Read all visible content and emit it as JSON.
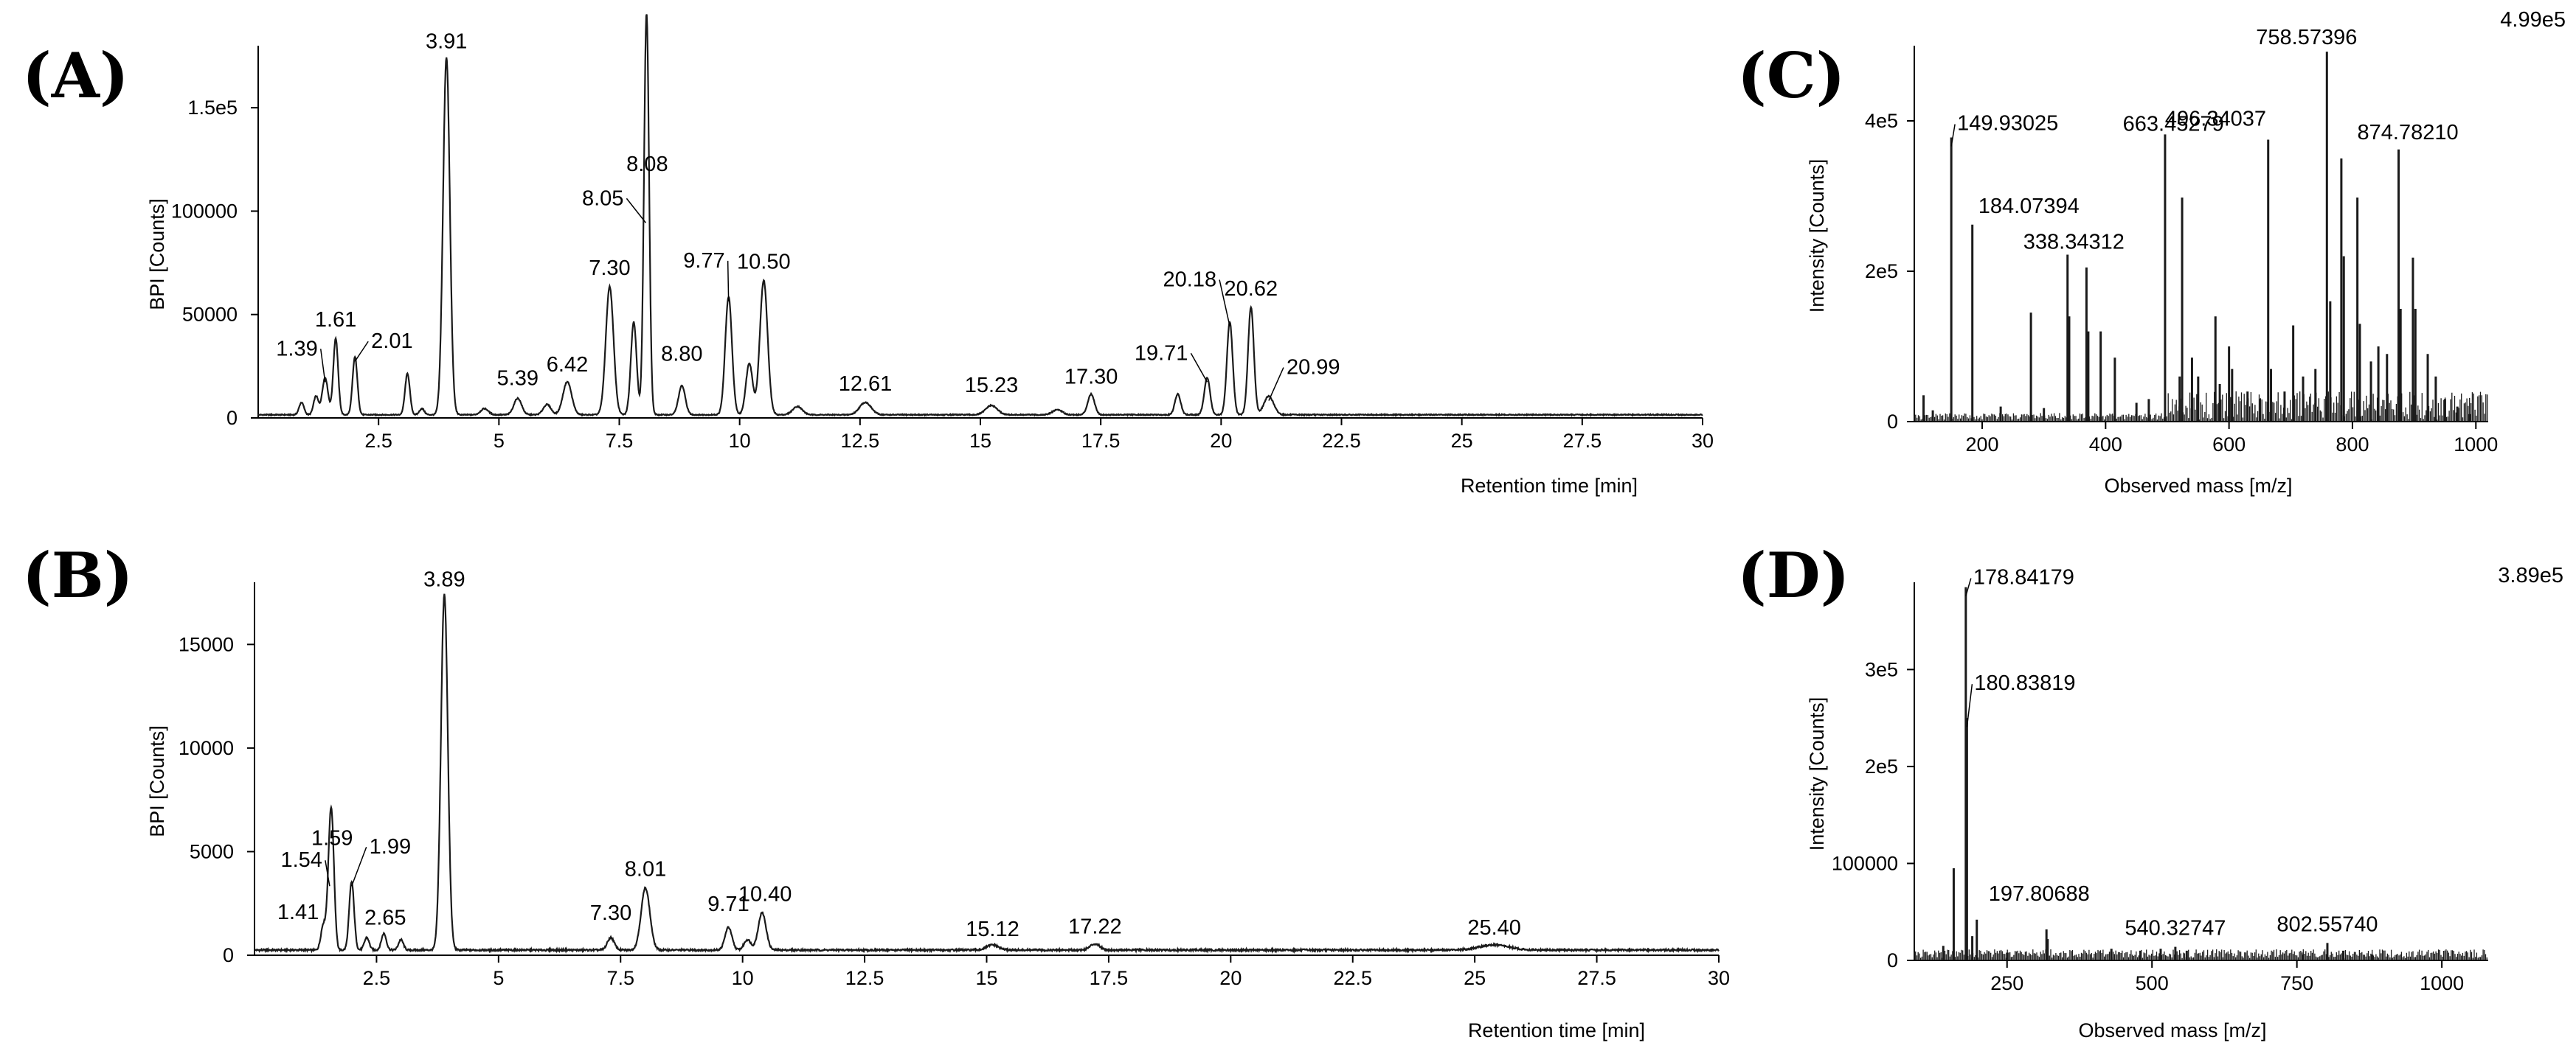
{
  "colors": {
    "trace": "#1a1a1a",
    "axis": "#000000",
    "background": "#ffffff"
  },
  "chart_data": [
    {
      "panel": "(A)",
      "type": "line",
      "subtype": "chromatogram",
      "xlabel": "Retention time [min]",
      "ylabel": "BPI [Counts]",
      "xlim": [
        0,
        30
      ],
      "ylim": [
        0,
        180000
      ],
      "xticks": [
        {
          "v": 2.5,
          "t": "2.5"
        },
        {
          "v": 5,
          "t": "5"
        },
        {
          "v": 7.5,
          "t": "7.5"
        },
        {
          "v": 10,
          "t": "10"
        },
        {
          "v": 12.5,
          "t": "12.5"
        },
        {
          "v": 15,
          "t": "15"
        },
        {
          "v": 17.5,
          "t": "17.5"
        },
        {
          "v": 20,
          "t": "20"
        },
        {
          "v": 22.5,
          "t": "22.5"
        },
        {
          "v": 25,
          "t": "25"
        },
        {
          "v": 27.5,
          "t": "27.5"
        },
        {
          "v": 30,
          "t": "30"
        }
      ],
      "yticks": [
        {
          "v": 0,
          "t": "0"
        },
        {
          "v": 50000,
          "t": "50000"
        },
        {
          "v": 100000,
          "t": "100000"
        },
        {
          "v": 150000,
          "t": "1.5e5"
        }
      ],
      "baseline": 1500,
      "peaks": [
        {
          "x": 0.9,
          "y": 6000,
          "w": 0.05
        },
        {
          "x": 1.2,
          "y": 9000,
          "w": 0.05
        },
        {
          "x": 1.39,
          "y": 18000,
          "w": 0.06,
          "label": "1.39"
        },
        {
          "x": 1.61,
          "y": 37000,
          "w": 0.05,
          "label": "1.61"
        },
        {
          "x": 2.01,
          "y": 28000,
          "w": 0.05,
          "label": "2.01"
        },
        {
          "x": 3.1,
          "y": 20000,
          "w": 0.05
        },
        {
          "x": 3.4,
          "y": 3000,
          "w": 0.05
        },
        {
          "x": 3.91,
          "y": 173000,
          "w": 0.07,
          "label": "3.91"
        },
        {
          "x": 4.7,
          "y": 3000,
          "w": 0.08
        },
        {
          "x": 5.39,
          "y": 8000,
          "w": 0.08,
          "label": "5.39"
        },
        {
          "x": 6.0,
          "y": 5000,
          "w": 0.08
        },
        {
          "x": 6.42,
          "y": 16000,
          "w": 0.09,
          "label": "6.42"
        },
        {
          "x": 7.3,
          "y": 62000,
          "w": 0.08,
          "label": "7.30"
        },
        {
          "x": 7.8,
          "y": 45000,
          "w": 0.06
        },
        {
          "x": 8.05,
          "y": 95000,
          "w": 0.05,
          "label": "8.05"
        },
        {
          "x": 8.08,
          "y": 108000,
          "w": 0.05,
          "label": "8.08"
        },
        {
          "x": 8.8,
          "y": 14000,
          "w": 0.07,
          "label": "8.80"
        },
        {
          "x": 9.77,
          "y": 57000,
          "w": 0.07,
          "label": "9.77"
        },
        {
          "x": 10.2,
          "y": 25000,
          "w": 0.07
        },
        {
          "x": 10.5,
          "y": 65000,
          "w": 0.08,
          "label": "10.50"
        },
        {
          "x": 11.2,
          "y": 4000,
          "w": 0.1
        },
        {
          "x": 12.61,
          "y": 6000,
          "w": 0.12,
          "label": "12.61"
        },
        {
          "x": 15.23,
          "y": 4500,
          "w": 0.12,
          "label": "15.23"
        },
        {
          "x": 16.6,
          "y": 2500,
          "w": 0.1
        },
        {
          "x": 17.3,
          "y": 10000,
          "w": 0.07,
          "label": "17.30"
        },
        {
          "x": 19.1,
          "y": 10000,
          "w": 0.06
        },
        {
          "x": 19.71,
          "y": 18000,
          "w": 0.06,
          "label": "19.71"
        },
        {
          "x": 20.18,
          "y": 45000,
          "w": 0.06,
          "label": "20.18"
        },
        {
          "x": 20.62,
          "y": 52000,
          "w": 0.06,
          "label": "20.62"
        },
        {
          "x": 20.99,
          "y": 9000,
          "w": 0.1,
          "label": "20.99"
        }
      ]
    },
    {
      "panel": "(B)",
      "type": "line",
      "subtype": "chromatogram",
      "xlabel": "Retention time [min]",
      "ylabel": "BPI [Counts]",
      "xlim": [
        0,
        30
      ],
      "ylim": [
        0,
        18000
      ],
      "xticks": [
        {
          "v": 2.5,
          "t": "2.5"
        },
        {
          "v": 5,
          "t": "5"
        },
        {
          "v": 7.5,
          "t": "7.5"
        },
        {
          "v": 10,
          "t": "10"
        },
        {
          "v": 12.5,
          "t": "12.5"
        },
        {
          "v": 15,
          "t": "15"
        },
        {
          "v": 17.5,
          "t": "17.5"
        },
        {
          "v": 20,
          "t": "20"
        },
        {
          "v": 22.5,
          "t": "22.5"
        },
        {
          "v": 25,
          "t": "25"
        },
        {
          "v": 27.5,
          "t": "27.5"
        },
        {
          "v": 30,
          "t": "30"
        }
      ],
      "yticks": [
        {
          "v": 0,
          "t": "0"
        },
        {
          "v": 5000,
          "t": "5000"
        },
        {
          "v": 10000,
          "t": "10000"
        },
        {
          "v": 15000,
          "t": "15000"
        }
      ],
      "baseline": 250,
      "peaks": [
        {
          "x": 1.41,
          "y": 1200,
          "w": 0.05,
          "label": "1.41"
        },
        {
          "x": 1.54,
          "y": 3300,
          "w": 0.05,
          "label": "1.54"
        },
        {
          "x": 1.59,
          "y": 4500,
          "w": 0.05,
          "label": "1.59"
        },
        {
          "x": 1.99,
          "y": 3300,
          "w": 0.05,
          "label": "1.99"
        },
        {
          "x": 2.3,
          "y": 600,
          "w": 0.05
        },
        {
          "x": 2.65,
          "y": 800,
          "w": 0.05,
          "label": "2.65"
        },
        {
          "x": 3.0,
          "y": 500,
          "w": 0.05
        },
        {
          "x": 3.89,
          "y": 17200,
          "w": 0.07,
          "label": "3.89"
        },
        {
          "x": 7.3,
          "y": 600,
          "w": 0.07,
          "label": "7.30"
        },
        {
          "x": 8.01,
          "y": 3000,
          "w": 0.09,
          "label": "8.01"
        },
        {
          "x": 9.71,
          "y": 1100,
          "w": 0.07,
          "label": "9.71"
        },
        {
          "x": 10.1,
          "y": 500,
          "w": 0.07
        },
        {
          "x": 10.4,
          "y": 1800,
          "w": 0.08,
          "label": "10.40"
        },
        {
          "x": 15.12,
          "y": 250,
          "w": 0.12,
          "label": "15.12"
        },
        {
          "x": 17.22,
          "y": 300,
          "w": 0.1,
          "label": "17.22"
        },
        {
          "x": 25.4,
          "y": 250,
          "w": 0.3,
          "label": "25.40"
        }
      ]
    },
    {
      "panel": "(C)",
      "type": "bar",
      "subtype": "mass_spectrum",
      "xlabel": "Observed mass [m/z]",
      "ylabel": "Intensity [Counts]",
      "max_intensity": "4.99e5",
      "xlim": [
        90,
        1020
      ],
      "ylim": [
        0,
        500000
      ],
      "xticks": [
        {
          "v": 200,
          "t": "200"
        },
        {
          "v": 400,
          "t": "400"
        },
        {
          "v": 600,
          "t": "600"
        },
        {
          "v": 800,
          "t": "800"
        },
        {
          "v": 1000,
          "t": "1000"
        }
      ],
      "yticks": [
        {
          "v": 0,
          "t": "0"
        },
        {
          "v": 200000,
          "t": "2e5"
        },
        {
          "v": 400000,
          "t": "4e5"
        }
      ],
      "peaks": [
        {
          "mz": 105,
          "i": 35000
        },
        {
          "mz": 120,
          "i": 15000
        },
        {
          "mz": 149.93025,
          "i": 378000,
          "label": "149.93025"
        },
        {
          "mz": 184.07394,
          "i": 262000,
          "label": "184.07394"
        },
        {
          "mz": 230,
          "i": 20000
        },
        {
          "mz": 279,
          "i": 145000
        },
        {
          "mz": 300,
          "i": 18000
        },
        {
          "mz": 338.34312,
          "i": 222000,
          "label": "338.34312"
        },
        {
          "mz": 341,
          "i": 140000
        },
        {
          "mz": 369,
          "i": 205000
        },
        {
          "mz": 372,
          "i": 120000
        },
        {
          "mz": 392,
          "i": 120000
        },
        {
          "mz": 415,
          "i": 85000
        },
        {
          "mz": 450,
          "i": 25000
        },
        {
          "mz": 470,
          "i": 30000
        },
        {
          "mz": 496.34037,
          "i": 382000,
          "label": "496.34037"
        },
        {
          "mz": 520,
          "i": 60000
        },
        {
          "mz": 524,
          "i": 298000
        },
        {
          "mz": 540,
          "i": 85000
        },
        {
          "mz": 550,
          "i": 60000
        },
        {
          "mz": 578,
          "i": 140000
        },
        {
          "mz": 585,
          "i": 50000
        },
        {
          "mz": 600,
          "i": 100000
        },
        {
          "mz": 605,
          "i": 70000
        },
        {
          "mz": 630,
          "i": 40000
        },
        {
          "mz": 650,
          "i": 30000
        },
        {
          "mz": 663.45279,
          "i": 375000,
          "label": "663.45279"
        },
        {
          "mz": 668,
          "i": 70000
        },
        {
          "mz": 690,
          "i": 40000
        },
        {
          "mz": 704,
          "i": 128000
        },
        {
          "mz": 720,
          "i": 60000
        },
        {
          "mz": 740,
          "i": 70000
        },
        {
          "mz": 758.57396,
          "i": 492000,
          "label": "758.57396"
        },
        {
          "mz": 764,
          "i": 160000
        },
        {
          "mz": 782,
          "i": 350000
        },
        {
          "mz": 786,
          "i": 220000
        },
        {
          "mz": 808,
          "i": 298000
        },
        {
          "mz": 812,
          "i": 130000
        },
        {
          "mz": 830,
          "i": 80000
        },
        {
          "mz": 842,
          "i": 100000
        },
        {
          "mz": 856,
          "i": 90000
        },
        {
          "mz": 874.7821,
          "i": 362000,
          "label": "874.78210"
        },
        {
          "mz": 878,
          "i": 150000
        },
        {
          "mz": 898,
          "i": 218000
        },
        {
          "mz": 902,
          "i": 150000
        },
        {
          "mz": 922,
          "i": 90000
        },
        {
          "mz": 935,
          "i": 60000
        },
        {
          "mz": 950,
          "i": 30000
        },
        {
          "mz": 970,
          "i": 20000
        },
        {
          "mz": 990,
          "i": 10000
        }
      ]
    },
    {
      "panel": "(D)",
      "type": "bar",
      "subtype": "mass_spectrum",
      "xlabel": "Observed mass [m/z]",
      "ylabel": "Intensity [Counts]",
      "max_intensity": "3.89e5",
      "xlim": [
        90,
        1080
      ],
      "ylim": [
        0,
        390000
      ],
      "xticks": [
        {
          "v": 250,
          "t": "250"
        },
        {
          "v": 500,
          "t": "500"
        },
        {
          "v": 750,
          "t": "750"
        },
        {
          "v": 1000,
          "t": "1000"
        }
      ],
      "yticks": [
        {
          "v": 0,
          "t": "0"
        },
        {
          "v": 100000,
          "t": "100000"
        },
        {
          "v": 200000,
          "t": "2e5"
        },
        {
          "v": 300000,
          "t": "3e5"
        }
      ],
      "peaks": [
        {
          "mz": 140,
          "i": 15000
        },
        {
          "mz": 158,
          "i": 95000
        },
        {
          "mz": 178.84179,
          "i": 385000,
          "label": "178.84179"
        },
        {
          "mz": 180.83819,
          "i": 250000,
          "label": "180.83819"
        },
        {
          "mz": 190,
          "i": 25000
        },
        {
          "mz": 197.80688,
          "i": 42000,
          "label": "197.80688"
        },
        {
          "mz": 250,
          "i": 8000
        },
        {
          "mz": 318,
          "i": 32000
        },
        {
          "mz": 320,
          "i": 22000
        },
        {
          "mz": 430,
          "i": 12000
        },
        {
          "mz": 480,
          "i": 10000
        },
        {
          "mz": 515,
          "i": 12000
        },
        {
          "mz": 540.32747,
          "i": 14000,
          "label": "540.32747"
        },
        {
          "mz": 560,
          "i": 10000
        },
        {
          "mz": 760,
          "i": 6000
        },
        {
          "mz": 802.5574,
          "i": 18000,
          "label": "802.55740"
        },
        {
          "mz": 830,
          "i": 10000
        },
        {
          "mz": 880,
          "i": 6000
        }
      ]
    }
  ]
}
